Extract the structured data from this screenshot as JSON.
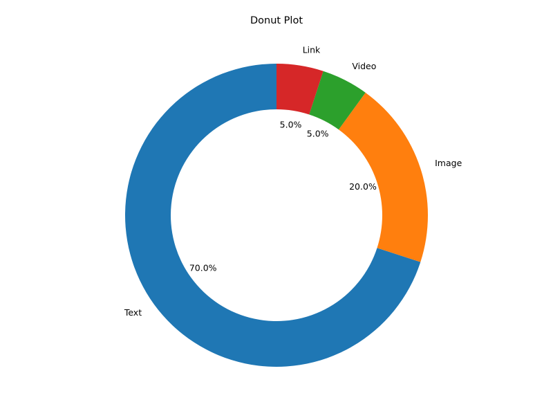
{
  "chart_data": {
    "type": "pie",
    "title": "Donut Plot",
    "categories": [
      "Text",
      "Image",
      "Video",
      "Link"
    ],
    "values": [
      70,
      20,
      5,
      5
    ],
    "percent_labels": [
      "70.0%",
      "20.0%",
      "5.0%",
      "5.0%"
    ],
    "colors": [
      "#1f77b4",
      "#ff7f0e",
      "#2ca02c",
      "#d62728"
    ],
    "start_angle_deg": 90,
    "direction": "counterclockwise",
    "donut_hole": true,
    "legend": "none"
  }
}
